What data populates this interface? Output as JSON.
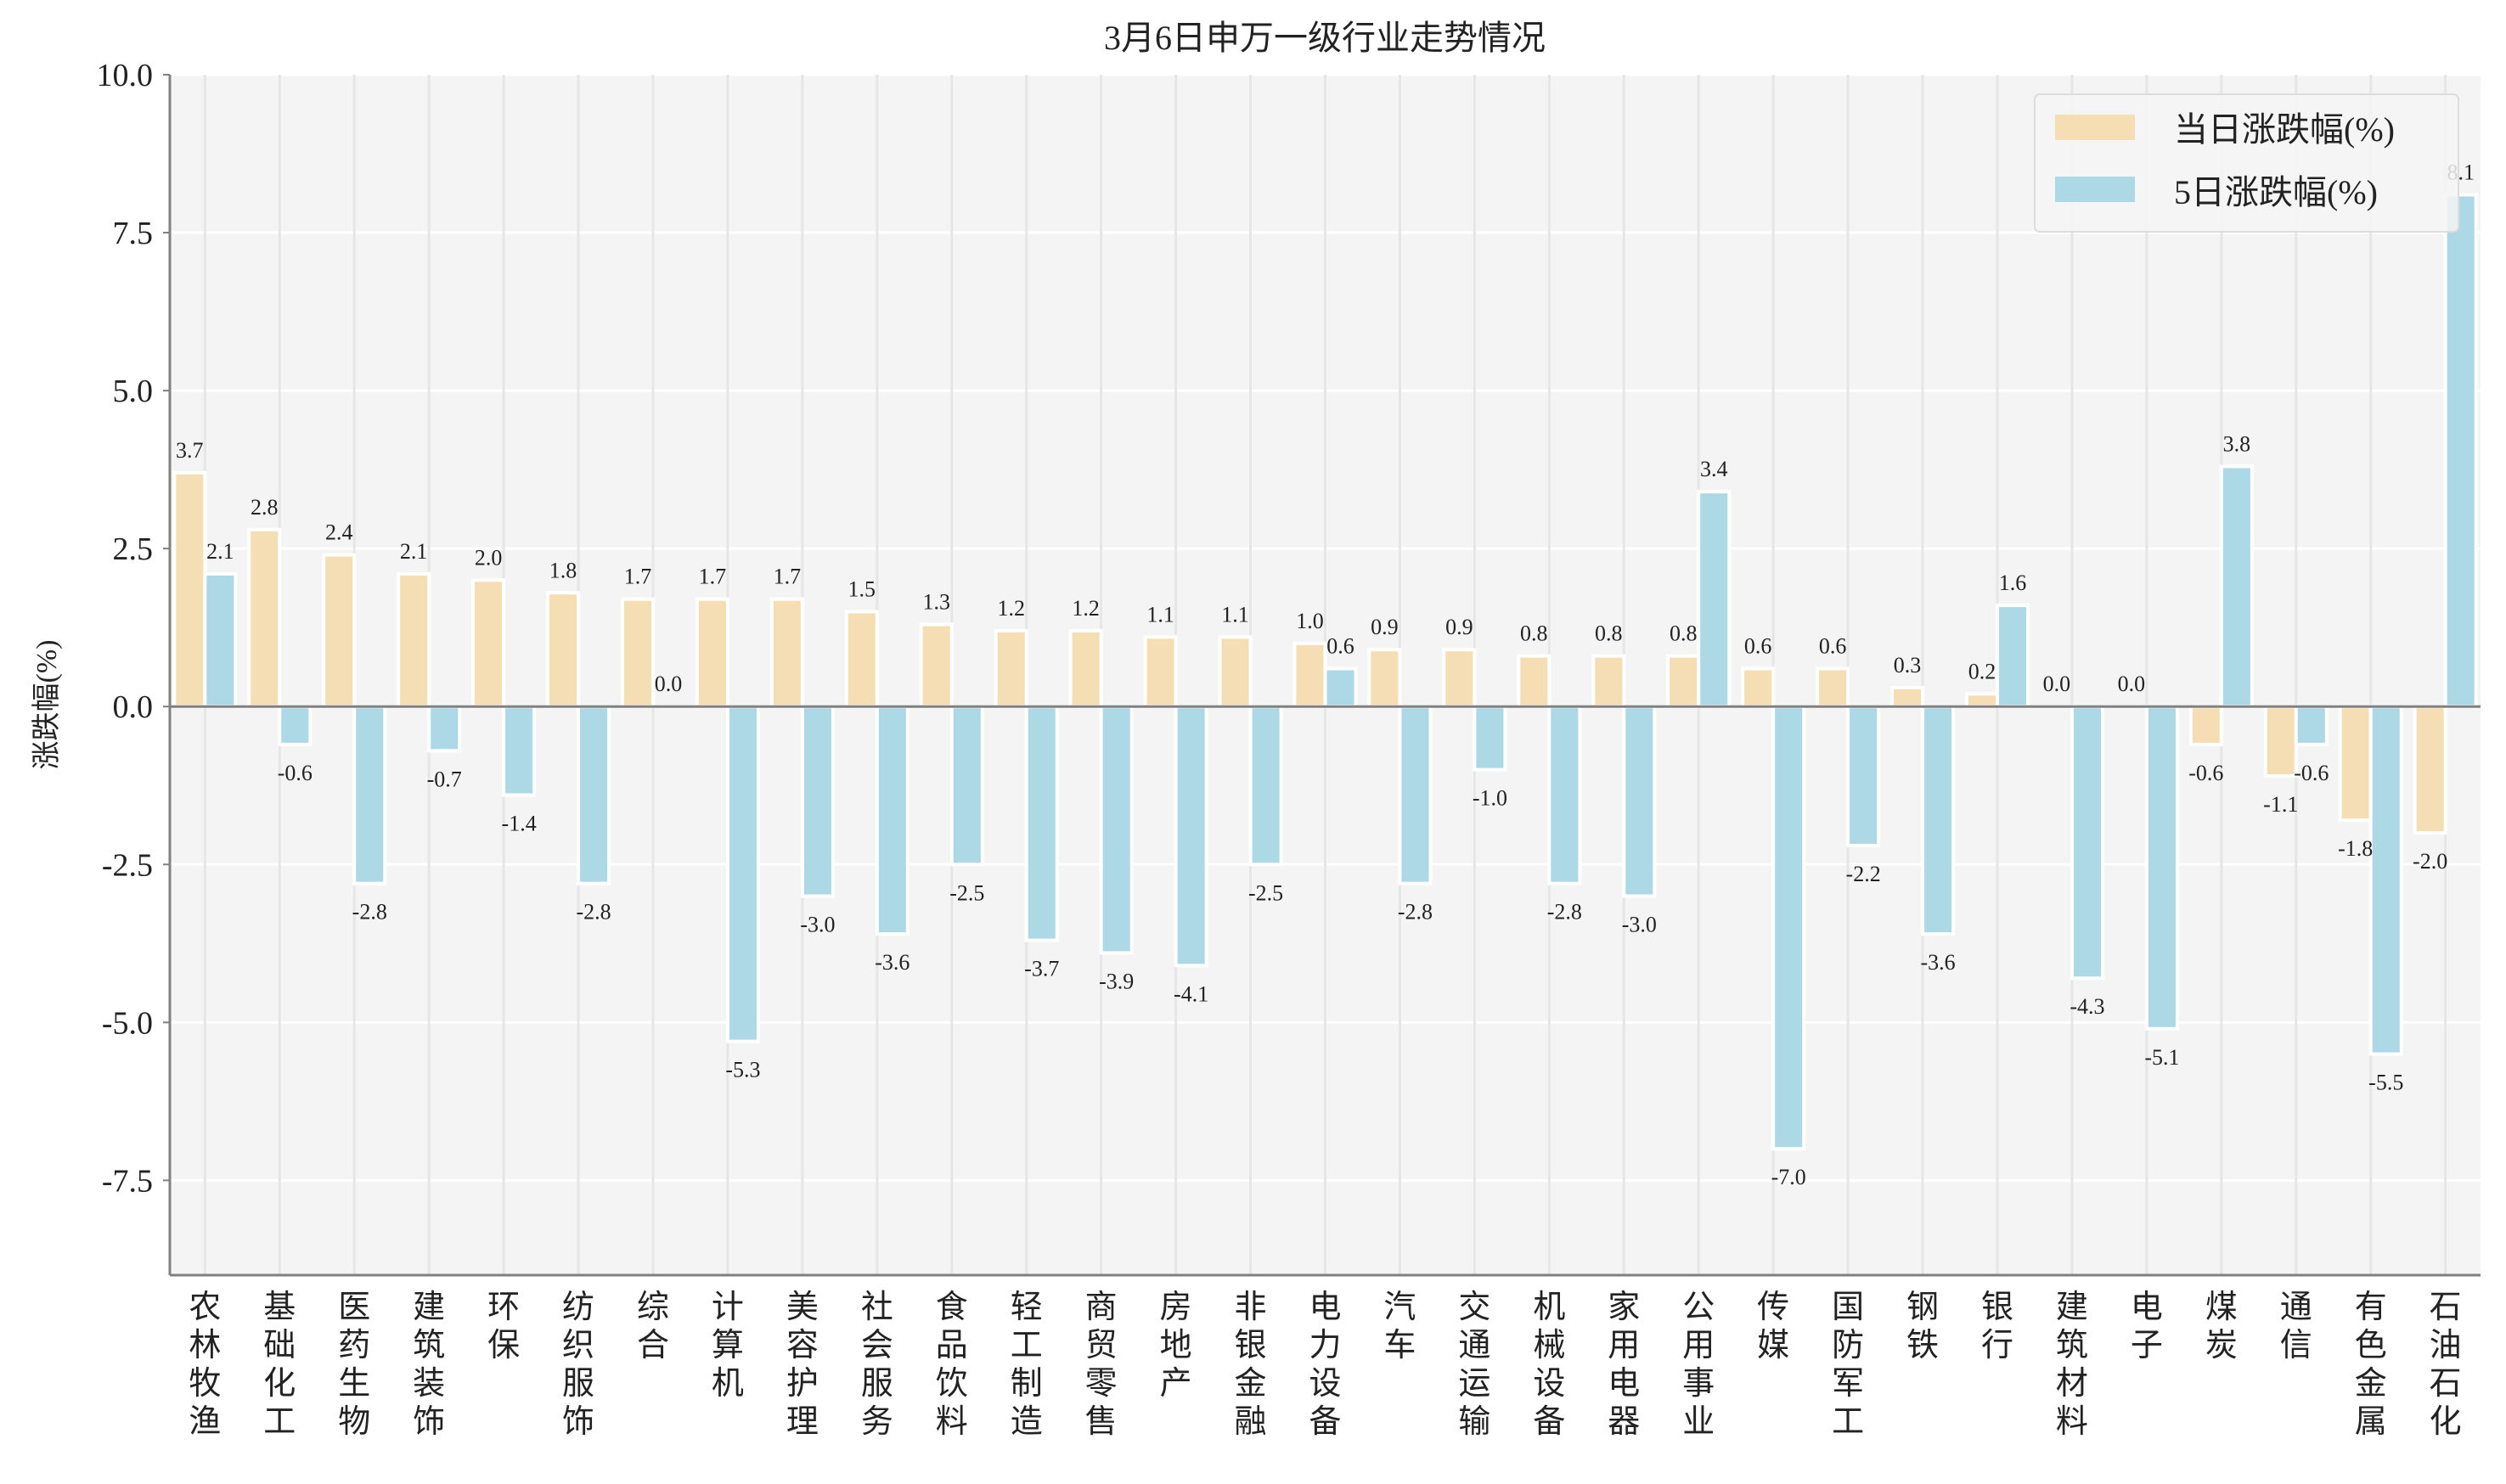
{
  "chart_data": {
    "type": "bar",
    "title": "3月6日申万一级行业走势情况",
    "xlabel": "",
    "ylabel": "涨跌幅(%)",
    "ylim": [
      -9.0,
      10.0
    ],
    "yticks": [
      10.0,
      7.5,
      5.0,
      2.5,
      0.0,
      -2.5,
      -5.0,
      -7.5
    ],
    "ytick_labels": [
      "10.0",
      "7.5",
      "5.0",
      "2.5",
      "0.0",
      "-2.5",
      "-5.0",
      "-7.5"
    ],
    "grid": true,
    "legend_position": "top-right",
    "categories": [
      "农林牧渔",
      "基础化工",
      "医药生物",
      "建筑装饰",
      "环保",
      "纺织服饰",
      "综合",
      "计算机",
      "美容护理",
      "社会服务",
      "食品饮料",
      "轻工制造",
      "商贸零售",
      "房地产",
      "非银金融",
      "电力设备",
      "汽车",
      "交通运输",
      "机械设备",
      "家用电器",
      "公用事业",
      "传媒",
      "国防军工",
      "钢铁",
      "银行",
      "建筑材料",
      "电子",
      "煤炭",
      "通信",
      "有色金属",
      "石油石化"
    ],
    "series": [
      {
        "name": "当日涨跌幅(%)",
        "color": "#f5deb3",
        "values": [
          3.7,
          2.8,
          2.4,
          2.1,
          2.0,
          1.8,
          1.7,
          1.7,
          1.7,
          1.5,
          1.3,
          1.2,
          1.2,
          1.1,
          1.1,
          1.0,
          0.9,
          0.9,
          0.8,
          0.8,
          0.8,
          0.6,
          0.6,
          0.3,
          0.2,
          0.0,
          0.0,
          -0.6,
          -1.1,
          -1.8,
          -2.0
        ]
      },
      {
        "name": "5日涨跌幅(%)",
        "color": "#add8e6",
        "values": [
          2.1,
          -0.6,
          -2.8,
          -0.7,
          -1.4,
          -2.8,
          0.0,
          -5.3,
          -3.0,
          -3.6,
          -2.5,
          -3.7,
          -3.9,
          -4.1,
          -2.5,
          0.6,
          -2.8,
          -1.0,
          -2.8,
          -3.0,
          3.4,
          -7.0,
          -2.2,
          -3.6,
          1.6,
          -4.3,
          -5.1,
          3.8,
          -0.6,
          -5.5,
          8.1
        ]
      }
    ]
  }
}
